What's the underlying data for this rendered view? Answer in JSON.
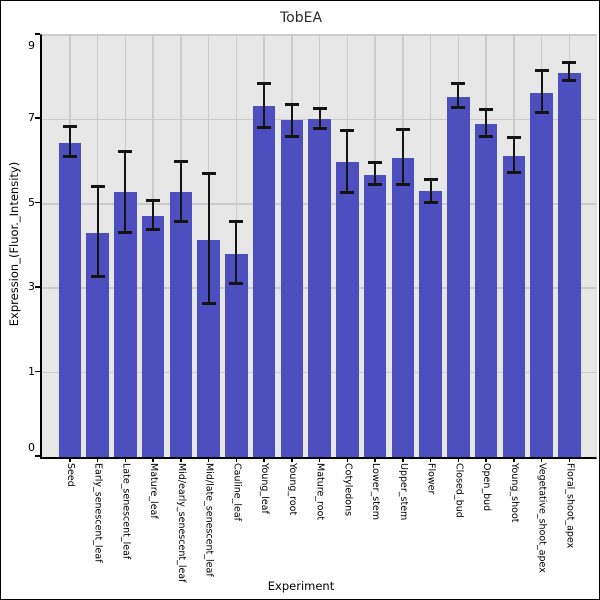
{
  "title": "TobEA",
  "chart_data": {
    "type": "bar",
    "title": "TobEA",
    "xlabel": "Experiment",
    "ylabel": "Expression_(Fluor._Intensity)",
    "yticks": [
      0,
      1,
      3,
      5,
      7,
      9
    ],
    "axis_note": "y ticks are drawn equally spaced: 0 at panel bottom, 9 at panel top",
    "grid": true,
    "legend": "none",
    "bar_color": "#4e4fbe",
    "error_color": "#141414",
    "panel_background": "#e7e7e7",
    "gridline_color": "#cbcbcb",
    "categories": [
      "Seed",
      "Early_senescent_leaf",
      "Late_senescent_leaf",
      "Mature_leaf",
      "Mid/early_senescent_leaf",
      "Mid/late_senescent_leaf",
      "Cauline_leaf",
      "Young_leaf",
      "Young_root",
      "Mature_root",
      "Cotyledons",
      "Lower_stem",
      "Upper_stem",
      "Flower",
      "Closed_bud",
      "Open_bud",
      "Young_shoot",
      "Vegetative_shoot_apex",
      "Floral_shoot_apex"
    ],
    "values": [
      6.45,
      4.3,
      5.27,
      4.71,
      5.27,
      4.14,
      3.82,
      7.32,
      6.98,
      7.0,
      6.0,
      5.69,
      6.08,
      5.3,
      7.54,
      6.9,
      6.13,
      7.63,
      8.11
    ],
    "errors_up": [
      0.37,
      1.12,
      0.97,
      0.36,
      0.73,
      1.57,
      0.77,
      0.54,
      0.37,
      0.25,
      0.74,
      0.28,
      0.67,
      0.27,
      0.31,
      0.33,
      0.43,
      0.53,
      0.23
    ],
    "errors_down": [
      0.33,
      1.03,
      0.95,
      0.32,
      0.69,
      1.5,
      0.7,
      0.51,
      0.38,
      0.22,
      0.73,
      0.23,
      0.63,
      0.26,
      0.26,
      0.3,
      0.38,
      0.47,
      0.18
    ]
  }
}
